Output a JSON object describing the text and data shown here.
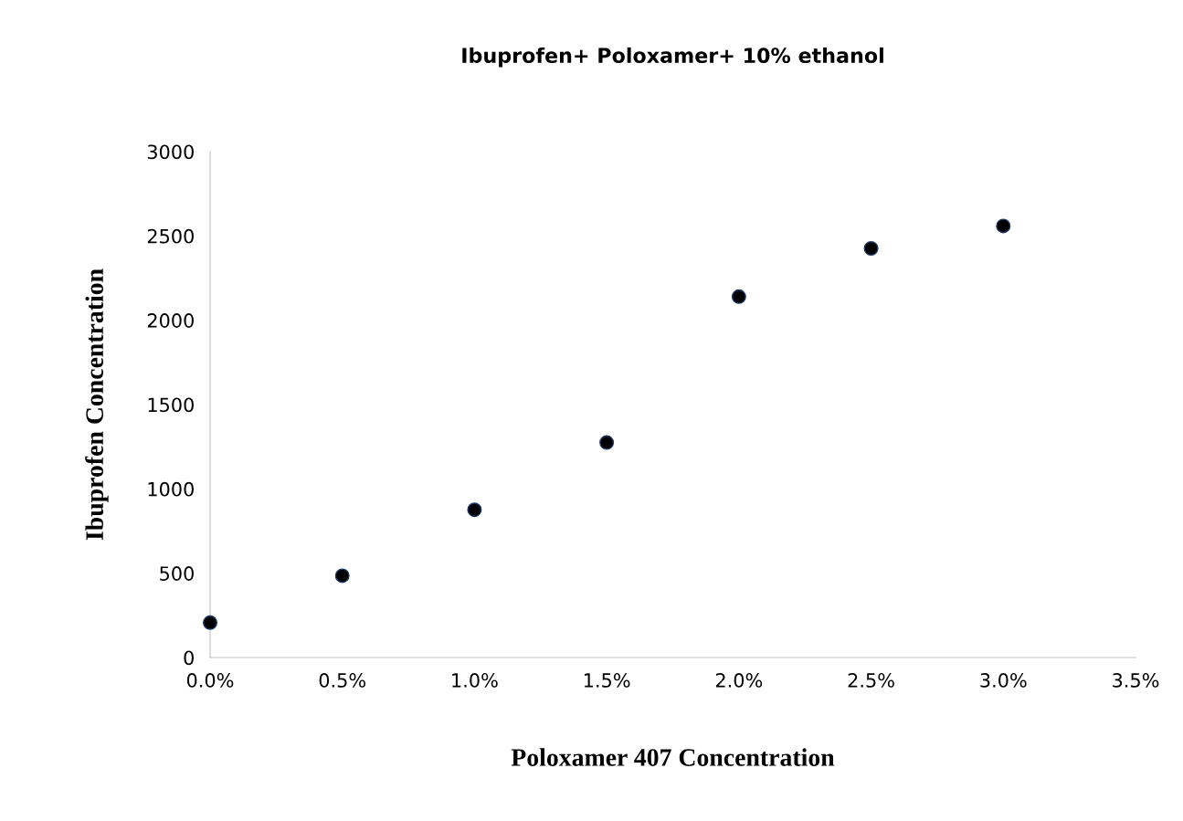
{
  "chart_data": {
    "type": "scatter",
    "title": "Ibuprofen+ Poloxamer+ 10% ethanol",
    "xlabel": "Poloxamer 407 Concentration",
    "ylabel": "Ibuprofen Concentration",
    "x": [
      0,
      0.5,
      1.0,
      1.5,
      2.0,
      2.5,
      3.0
    ],
    "series": [
      {
        "color": "#000000",
        "values": [
          207,
          485,
          876,
          1275,
          2140,
          2426,
          2559
        ]
      }
    ],
    "xlim": [
      0,
      3.5
    ],
    "xticks": [
      {
        "value": 0,
        "label": "0.0%"
      },
      {
        "value": 0.5,
        "label": "0.5%"
      },
      {
        "value": 1.0,
        "label": "1.0%"
      },
      {
        "value": 1.5,
        "label": "1.5%"
      },
      {
        "value": 2.0,
        "label": "2.0%"
      },
      {
        "value": 2.5,
        "label": "2.5%"
      },
      {
        "value": 3.0,
        "label": "3.0%"
      },
      {
        "value": 3.5,
        "label": "3.5%"
      }
    ],
    "ylim": [
      0,
      3000
    ],
    "yticks": [
      0,
      500,
      1000,
      1500,
      2000,
      2500,
      3000
    ],
    "marker": "circle"
  }
}
